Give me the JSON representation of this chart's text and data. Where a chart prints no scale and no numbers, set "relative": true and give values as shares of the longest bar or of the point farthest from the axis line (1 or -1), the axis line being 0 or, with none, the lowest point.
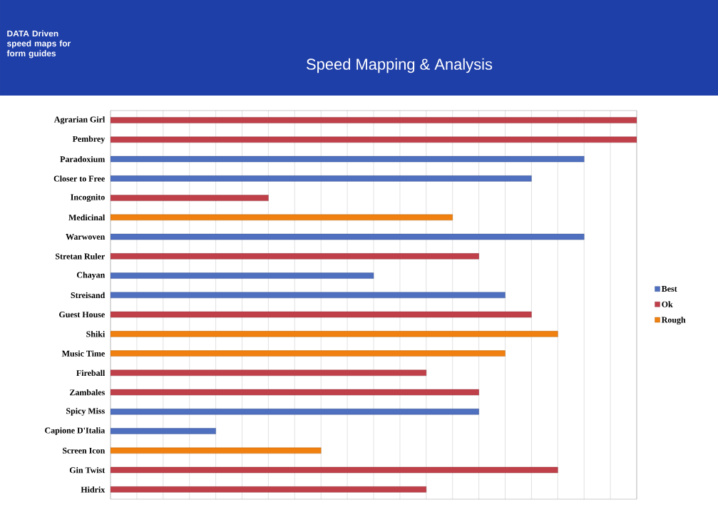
{
  "chart_data": {
    "type": "bar",
    "orientation": "horizontal",
    "title": "Speed Mapping & Analysis",
    "subtitle": "DATA Driven speed maps for form guides",
    "relative": true,
    "grid": "x",
    "legend": "right",
    "tick_labels": "y",
    "categories": [
      "Agrarian Girl",
      "Pembrey",
      "Paradoxium",
      "Closer to Free",
      "Incognito",
      "Medicinal",
      "Warwoven",
      "Stretan Ruler",
      "Chayan",
      "Streisand",
      "Guest House",
      "Shiki",
      "Music Time",
      "Fireball",
      "Zambales",
      "Spicy Miss",
      "Capione D'Italia",
      "Screen Icon",
      "Gin Twist",
      "Hidrix"
    ],
    "series": [
      {
        "name": "Best",
        "color": "#4f6fbf",
        "values": [
          null,
          null,
          0.9,
          0.8,
          null,
          null,
          0.9,
          null,
          0.5,
          0.75,
          null,
          null,
          null,
          null,
          null,
          0.7,
          0.2,
          null,
          null,
          null
        ]
      },
      {
        "name": "Ok",
        "color": "#c0404a",
        "values": [
          1,
          1,
          null,
          null,
          0.3,
          null,
          null,
          0.7,
          null,
          null,
          0.8,
          null,
          null,
          0.6,
          0.7,
          null,
          null,
          null,
          0.85,
          0.6
        ]
      },
      {
        "name": "Rough",
        "color": "#f08010",
        "values": [
          null,
          null,
          null,
          null,
          null,
          0.65,
          null,
          null,
          null,
          null,
          null,
          0.85,
          0.75,
          null,
          null,
          null,
          null,
          0.4,
          null,
          null
        ]
      }
    ]
  }
}
